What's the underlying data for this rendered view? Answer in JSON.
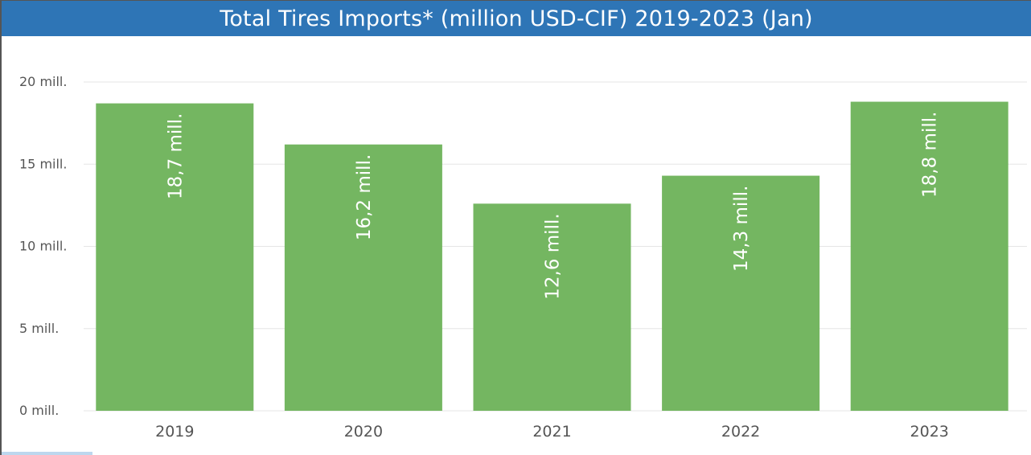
{
  "chart_data": {
    "type": "bar",
    "title": "Total Tires Imports* (million USD-CIF) 2019-2023 (Jan)",
    "categories": [
      "2019",
      "2020",
      "2021",
      "2022",
      "2023"
    ],
    "values": [
      18.7,
      16.2,
      12.6,
      14.3,
      18.8
    ],
    "data_labels": [
      "18,7 mill.",
      "16,2 mill.",
      "12,6 mill.",
      "14,3 mill.",
      "18,8 mill."
    ],
    "yticks": [
      0,
      5,
      10,
      15,
      20
    ],
    "ytick_labels": [
      "0 mill.",
      "5 mill.",
      "10 mill.",
      "15 mill.",
      "20 mill."
    ],
    "ylim": [
      0,
      20
    ],
    "xlabel": "",
    "ylabel": "",
    "grid": true,
    "legend": "none",
    "bar_color": "#74b661",
    "header_color": "#2e75b6",
    "gridline_color": "#e6e6e6"
  }
}
